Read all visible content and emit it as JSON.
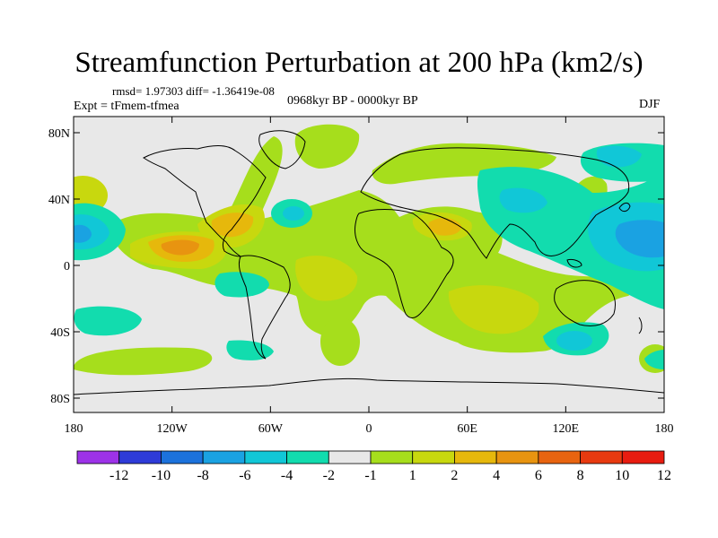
{
  "title": "Streamfunction Perturbation at 200 hPa (km2/s)",
  "stats": {
    "rmsd_label": "rmsd=",
    "rmsd": "1.97303",
    "diff_label": "diff=",
    "diff": "-1.36419e-08"
  },
  "experiment": "Expt = tFmem-tfmea",
  "period": "0968kyr BP - 0000kyr BP",
  "season": "DJF",
  "axes": {
    "lat_ticks": [
      "80N",
      "40N",
      "0",
      "40S",
      "80S"
    ],
    "lon_ticks": [
      "180",
      "120W",
      "60W",
      "0",
      "60E",
      "120E",
      "180"
    ]
  },
  "colorbar": {
    "colors": [
      "#9d32e8",
      "#2e3bd8",
      "#1c72dc",
      "#1aa2e2",
      "#11c7d7",
      "#12dcae",
      "#e8e8e8",
      "#a6de1c",
      "#c8d80e",
      "#e6b80c",
      "#e89410",
      "#e86410",
      "#e83a10",
      "#e81c10"
    ],
    "labels": [
      "-12",
      "-10",
      "-8",
      "-6",
      "-4",
      "-2",
      "-1",
      "1",
      "2",
      "4",
      "6",
      "8",
      "10",
      "12"
    ]
  },
  "field_colors": {
    "pos1": "#a6de1c",
    "pos2": "#c8d80e",
    "pos3": "#e6b80c",
    "pos4": "#e89410",
    "neg1": "#12dcae",
    "neg2": "#11c7d7",
    "neg3": "#1aa2e2"
  }
}
